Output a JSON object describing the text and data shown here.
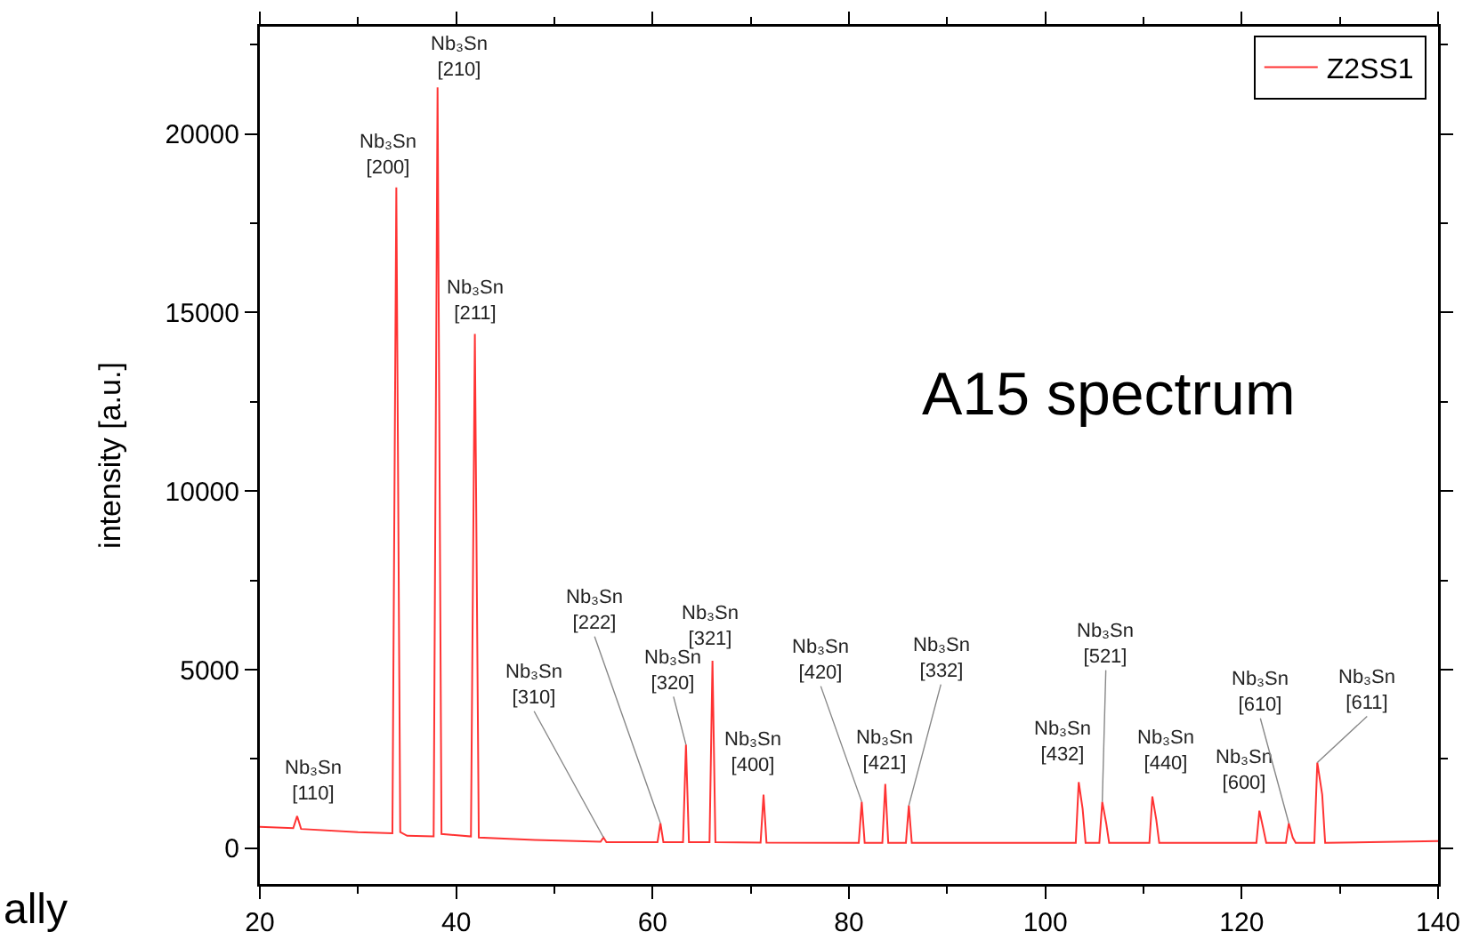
{
  "chart_data": {
    "type": "line",
    "ylabel": "intensity [a.u.]",
    "xlim": [
      20,
      140
    ],
    "xticks": [
      20,
      40,
      60,
      80,
      100,
      120,
      140
    ],
    "ylim": [
      -1000,
      23000
    ],
    "yticks": [
      0,
      5000,
      10000,
      15000,
      20000
    ],
    "grid": false,
    "legend": "top right",
    "marker": "none",
    "line_style": "solid",
    "series": [
      {
        "name": "Z2SS1",
        "color": "#ff3333",
        "x": [
          20,
          23.4,
          23.8,
          24.2,
          30,
          33.5,
          33.9,
          34.3,
          35,
          37.7,
          38.1,
          38.5,
          41.5,
          41.9,
          42.3,
          48,
          54.7,
          55,
          55.3,
          60.5,
          60.8,
          61.1,
          63.1,
          63.4,
          63.7,
          65.8,
          66.1,
          66.4,
          71,
          71.3,
          71.6,
          81,
          81.3,
          81.6,
          83.4,
          83.7,
          84,
          85.8,
          86.1,
          86.4,
          103.1,
          103.4,
          103.8,
          104.1,
          105.5,
          105.8,
          106.2,
          106.5,
          110.6,
          110.9,
          111.3,
          111.6,
          121.5,
          121.8,
          122.2,
          122.5,
          124.5,
          124.8,
          125.2,
          125.5,
          127.4,
          127.7,
          128.2,
          128.5,
          140
        ],
        "values": [
          600,
          560,
          900,
          540,
          450,
          420,
          18500,
          450,
          350,
          330,
          21300,
          400,
          330,
          14400,
          300,
          230,
          180,
          300,
          170,
          170,
          700,
          170,
          170,
          2900,
          170,
          170,
          5250,
          170,
          160,
          1500,
          160,
          150,
          1300,
          150,
          150,
          1800,
          150,
          150,
          1200,
          150,
          150,
          1850,
          1100,
          150,
          150,
          1300,
          700,
          150,
          150,
          1450,
          800,
          150,
          150,
          1050,
          550,
          150,
          150,
          700,
          300,
          150,
          150,
          2400,
          1500,
          150,
          200
        ]
      }
    ],
    "annotations": [
      {
        "text": "Nb₃Sn\n[110]",
        "x": 23.8,
        "y": 900
      },
      {
        "text": "Nb₃Sn\n[200]",
        "x": 33.9,
        "y": 18500
      },
      {
        "text": "Nb₃Sn\n[210]",
        "x": 38.1,
        "y": 21300
      },
      {
        "text": "Nb₃Sn\n[211]",
        "x": 41.9,
        "y": 14400
      },
      {
        "text": "Nb₃Sn\n[310]",
        "x": 55,
        "y": 300
      },
      {
        "text": "Nb₃Sn\n[222]",
        "x": 60.8,
        "y": 700
      },
      {
        "text": "Nb₃Sn\n[320]",
        "x": 63.4,
        "y": 2900
      },
      {
        "text": "Nb₃Sn\n[321]",
        "x": 66.1,
        "y": 5250
      },
      {
        "text": "Nb₃Sn\n[400]",
        "x": 71.3,
        "y": 1500
      },
      {
        "text": "Nb₃Sn\n[420]",
        "x": 81.3,
        "y": 1300
      },
      {
        "text": "Nb₃Sn\n[421]",
        "x": 83.7,
        "y": 1800
      },
      {
        "text": "Nb₃Sn\n[332]",
        "x": 86.1,
        "y": 1200
      },
      {
        "text": "Nb₃Sn\n[432]",
        "x": 103.4,
        "y": 1850
      },
      {
        "text": "Nb₃Sn\n[521]",
        "x": 105.8,
        "y": 1300
      },
      {
        "text": "Nb₃Sn\n[440]",
        "x": 110.9,
        "y": 1450
      },
      {
        "text": "Nb₃Sn\n[600]",
        "x": 121.8,
        "y": 1050
      },
      {
        "text": "Nb₃Sn\n[610]",
        "x": 124.8,
        "y": 700
      },
      {
        "text": "Nb₃Sn\n[611]",
        "x": 127.7,
        "y": 2400
      },
      "A15 spectrum",
      "ally"
    ]
  }
}
